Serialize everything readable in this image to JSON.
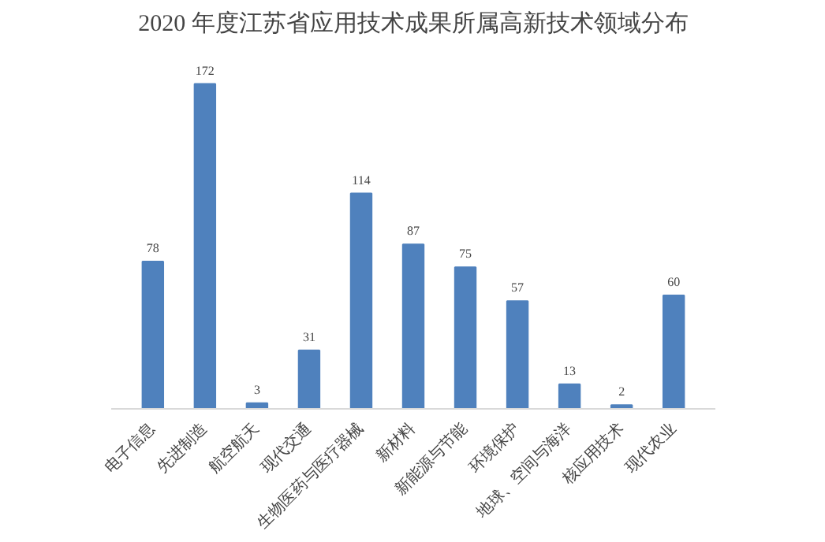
{
  "chart_data": {
    "type": "bar",
    "title": "2020 年度江苏省应用技术成果所属高新技术领域分布",
    "categories": [
      "电子信息",
      "先进制造",
      "航空航天",
      "现代交通",
      "生物医药与医疗器械",
      "新材料",
      "新能源与节能",
      "环境保护",
      "地球、空间与海洋",
      "核应用技术",
      "现代农业"
    ],
    "values": [
      78,
      172,
      3,
      31,
      114,
      87,
      75,
      57,
      13,
      2,
      60
    ],
    "color": "#4f81bd",
    "data_labels": true,
    "grid": false
  }
}
